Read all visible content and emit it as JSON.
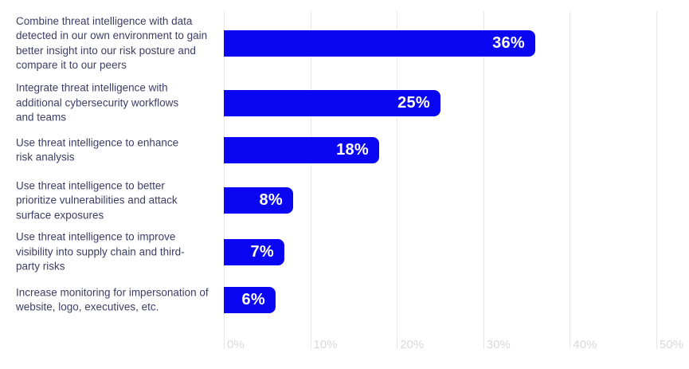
{
  "chart_data": {
    "type": "bar",
    "orientation": "horizontal",
    "title": "",
    "xlabel": "",
    "ylabel": "",
    "xlim": [
      0,
      50
    ],
    "grid": "vertical-only",
    "legend": "none",
    "categories": [
      "Combine threat intelligence with data detected in our own environment to gain better insight into our risk posture and compare it to our peers",
      "Integrate threat intelligence with additional cybersecurity workflows and teams",
      "Use threat intelligence to enhance risk analysis",
      "Use threat intelligence to better prioritize vulnerabilities and attack surface exposures",
      "Use threat intelligence to improve visibility into supply chain and third-party risks",
      "Increase monitoring for impersonation of website, logo, executives, etc."
    ],
    "category_lines": [
      [
        "Combine threat intelligence with data",
        "detected in our own environment to gain",
        "better insight into our risk posture and",
        "compare it to our peers"
      ],
      [
        "Integrate threat intelligence with",
        "additional cybersecurity workflows",
        "and teams"
      ],
      [
        "Use threat intelligence to enhance",
        "risk analysis"
      ],
      [
        "Use threat intelligence to better",
        "prioritize vulnerabilities and attack",
        "surface exposures"
      ],
      [
        "Use threat intelligence to improve",
        "visibility into supply chain and third-",
        "party risks"
      ],
      [
        "Increase monitoring for impersonation of",
        "website, logo, executives, etc."
      ]
    ],
    "values": [
      36,
      25,
      18,
      8,
      7,
      6
    ],
    "value_labels": [
      "36%",
      "25%",
      "18%",
      "8%",
      "7%",
      "6%"
    ],
    "x_ticks": [
      {
        "value": 0,
        "label": "0%"
      },
      {
        "value": 10,
        "label": "10%"
      },
      {
        "value": 20,
        "label": "20%"
      },
      {
        "value": 30,
        "label": "30%"
      },
      {
        "value": 40,
        "label": "40%"
      },
      {
        "value": 50,
        "label": "50%"
      }
    ],
    "colors": {
      "bar": "#0B06F2",
      "value_label": "#FFFFFF",
      "category_label": "#3B3E66",
      "tick_label": "#D9D9D9",
      "gridline": "#E7E7E7",
      "background": "#FFFFFF"
    }
  }
}
